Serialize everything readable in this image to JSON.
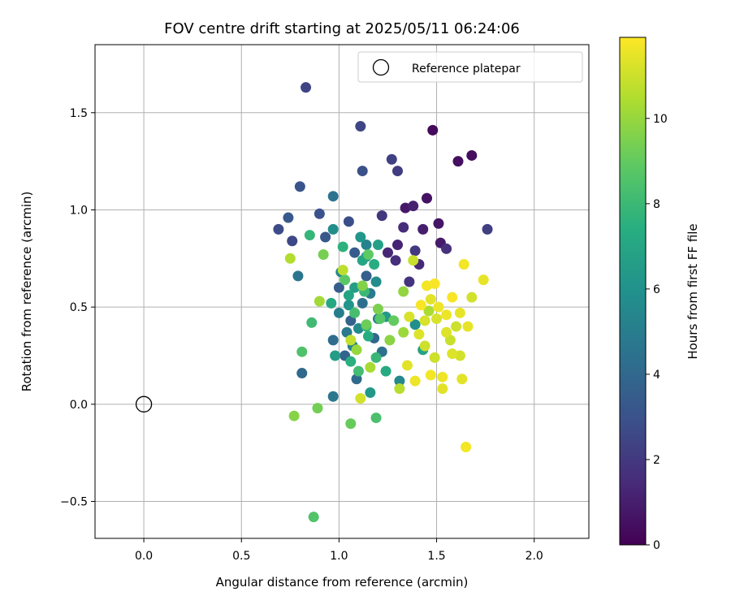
{
  "chart_data": {
    "type": "scatter",
    "title": "FOV centre drift starting at 2025/05/11 06:24:06",
    "xlabel": "Angular distance from reference (arcmin)",
    "ylabel": "Rotation from reference (arcmin)",
    "xlim": [
      -0.25,
      2.28
    ],
    "ylim": [
      -0.69,
      1.85
    ],
    "x_ticks": [
      0.0,
      0.5,
      1.0,
      1.5,
      2.0
    ],
    "x_tick_labels": [
      "0.0",
      "0.5",
      "1.0",
      "1.5",
      "2.0"
    ],
    "y_ticks": [
      -0.5,
      0.0,
      0.5,
      1.0,
      1.5
    ],
    "y_tick_labels": [
      "−0.5",
      "0.0",
      "0.5",
      "1.0",
      "1.5"
    ],
    "grid": true,
    "colormap": "viridis",
    "colorbar": {
      "label": "Hours from first FF file",
      "range": [
        0,
        11.9
      ],
      "ticks": [
        0,
        2,
        4,
        6,
        8,
        10
      ],
      "tick_labels": [
        "0",
        "2",
        "4",
        "6",
        "8",
        "10"
      ]
    },
    "legend": {
      "placement": "top-right",
      "entries": [
        "Reference platepar"
      ]
    },
    "reference_point": {
      "x": 0.0,
      "y": 0.0
    },
    "points": [
      {
        "x": 1.48,
        "y": 1.41,
        "c": 0.3
      },
      {
        "x": 1.68,
        "y": 1.28,
        "c": 0.4
      },
      {
        "x": 1.61,
        "y": 1.25,
        "c": 0.5
      },
      {
        "x": 1.45,
        "y": 1.06,
        "c": 0.6
      },
      {
        "x": 1.51,
        "y": 0.93,
        "c": 0.7
      },
      {
        "x": 1.34,
        "y": 1.01,
        "c": 0.8
      },
      {
        "x": 1.52,
        "y": 0.83,
        "c": 0.9
      },
      {
        "x": 1.43,
        "y": 0.9,
        "c": 1.0
      },
      {
        "x": 1.38,
        "y": 1.02,
        "c": 1.1
      },
      {
        "x": 1.3,
        "y": 0.82,
        "c": 1.2
      },
      {
        "x": 1.25,
        "y": 0.78,
        "c": 1.3
      },
      {
        "x": 1.41,
        "y": 0.72,
        "c": 1.4
      },
      {
        "x": 1.33,
        "y": 0.91,
        "c": 1.5
      },
      {
        "x": 1.29,
        "y": 0.74,
        "c": 1.6
      },
      {
        "x": 1.55,
        "y": 0.8,
        "c": 1.7
      },
      {
        "x": 1.36,
        "y": 0.63,
        "c": 1.8
      },
      {
        "x": 1.22,
        "y": 0.97,
        "c": 1.9
      },
      {
        "x": 1.39,
        "y": 0.79,
        "c": 2.0
      },
      {
        "x": 1.3,
        "y": 1.2,
        "c": 2.1
      },
      {
        "x": 1.76,
        "y": 0.9,
        "c": 2.2
      },
      {
        "x": 1.27,
        "y": 1.26,
        "c": 2.3
      },
      {
        "x": 0.83,
        "y": 1.63,
        "c": 2.4
      },
      {
        "x": 1.11,
        "y": 1.43,
        "c": 2.5
      },
      {
        "x": 0.76,
        "y": 0.84,
        "c": 2.6
      },
      {
        "x": 0.69,
        "y": 0.9,
        "c": 2.7
      },
      {
        "x": 1.05,
        "y": 0.94,
        "c": 2.8
      },
      {
        "x": 1.12,
        "y": 1.2,
        "c": 2.9
      },
      {
        "x": 0.9,
        "y": 0.98,
        "c": 3.0
      },
      {
        "x": 0.8,
        "y": 1.12,
        "c": 3.1
      },
      {
        "x": 0.93,
        "y": 0.86,
        "c": 3.2
      },
      {
        "x": 0.74,
        "y": 0.96,
        "c": 3.3
      },
      {
        "x": 1.08,
        "y": 0.78,
        "c": 3.4
      },
      {
        "x": 1.0,
        "y": 0.6,
        "c": 3.5
      },
      {
        "x": 1.14,
        "y": 0.66,
        "c": 3.6
      },
      {
        "x": 1.06,
        "y": 0.43,
        "c": 3.7
      },
      {
        "x": 1.03,
        "y": 0.25,
        "c": 3.8
      },
      {
        "x": 1.18,
        "y": 0.34,
        "c": 3.9
      },
      {
        "x": 0.81,
        "y": 0.16,
        "c": 4.0
      },
      {
        "x": 1.09,
        "y": 0.13,
        "c": 4.1
      },
      {
        "x": 0.97,
        "y": 0.33,
        "c": 4.2
      },
      {
        "x": 1.12,
        "y": 0.52,
        "c": 4.3
      },
      {
        "x": 1.22,
        "y": 0.27,
        "c": 4.4
      },
      {
        "x": 0.97,
        "y": 1.07,
        "c": 4.5
      },
      {
        "x": 0.79,
        "y": 0.66,
        "c": 4.6
      },
      {
        "x": 0.97,
        "y": 0.04,
        "c": 4.7
      },
      {
        "x": 1.04,
        "y": 0.37,
        "c": 4.8
      },
      {
        "x": 1.16,
        "y": 0.57,
        "c": 4.9
      },
      {
        "x": 1.0,
        "y": 0.47,
        "c": 5.0
      },
      {
        "x": 1.2,
        "y": 0.44,
        "c": 5.1
      },
      {
        "x": 1.07,
        "y": 0.3,
        "c": 5.2
      },
      {
        "x": 1.14,
        "y": 0.82,
        "c": 5.3
      },
      {
        "x": 1.01,
        "y": 0.68,
        "c": 5.4
      },
      {
        "x": 1.31,
        "y": 0.12,
        "c": 5.5
      },
      {
        "x": 1.1,
        "y": 0.39,
        "c": 5.6
      },
      {
        "x": 1.19,
        "y": 0.63,
        "c": 5.7
      },
      {
        "x": 0.97,
        "y": 0.9,
        "c": 5.8
      },
      {
        "x": 1.39,
        "y": 0.41,
        "c": 5.9
      },
      {
        "x": 1.14,
        "y": 0.76,
        "c": 6.0
      },
      {
        "x": 1.05,
        "y": 0.51,
        "c": 6.1
      },
      {
        "x": 1.11,
        "y": 0.86,
        "c": 6.2
      },
      {
        "x": 1.16,
        "y": 0.06,
        "c": 6.3
      },
      {
        "x": 1.24,
        "y": 0.45,
        "c": 6.4
      },
      {
        "x": 0.98,
        "y": 0.25,
        "c": 6.5
      },
      {
        "x": 1.08,
        "y": 0.6,
        "c": 6.6
      },
      {
        "x": 1.2,
        "y": 0.82,
        "c": 6.7
      },
      {
        "x": 1.43,
        "y": 0.28,
        "c": 6.8
      },
      {
        "x": 1.05,
        "y": 0.56,
        "c": 6.9
      },
      {
        "x": 1.12,
        "y": 0.74,
        "c": 7.0
      },
      {
        "x": 0.96,
        "y": 0.52,
        "c": 7.1
      },
      {
        "x": 1.24,
        "y": 0.17,
        "c": 7.2
      },
      {
        "x": 1.15,
        "y": 0.35,
        "c": 7.3
      },
      {
        "x": 1.18,
        "y": 0.72,
        "c": 7.4
      },
      {
        "x": 1.06,
        "y": 0.22,
        "c": 7.5
      },
      {
        "x": 1.02,
        "y": 0.81,
        "c": 7.6
      },
      {
        "x": 1.14,
        "y": 0.4,
        "c": 7.7
      },
      {
        "x": 0.85,
        "y": 0.87,
        "c": 7.8
      },
      {
        "x": 1.19,
        "y": 0.24,
        "c": 7.9
      },
      {
        "x": 1.13,
        "y": 0.58,
        "c": 8.0
      },
      {
        "x": 0.86,
        "y": 0.42,
        "c": 8.1
      },
      {
        "x": 1.1,
        "y": 0.17,
        "c": 8.2
      },
      {
        "x": 1.08,
        "y": 0.47,
        "c": 8.3
      },
      {
        "x": 1.19,
        "y": -0.07,
        "c": 8.4
      },
      {
        "x": 0.81,
        "y": 0.27,
        "c": 8.5
      },
      {
        "x": 0.87,
        "y": -0.58,
        "c": 8.6
      },
      {
        "x": 1.21,
        "y": 0.44,
        "c": 8.7
      },
      {
        "x": 1.03,
        "y": 0.64,
        "c": 8.8
      },
      {
        "x": 1.15,
        "y": 0.77,
        "c": 8.9
      },
      {
        "x": 1.28,
        "y": 0.43,
        "c": 9.0
      },
      {
        "x": 1.06,
        "y": -0.1,
        "c": 9.1
      },
      {
        "x": 1.14,
        "y": 0.41,
        "c": 9.2
      },
      {
        "x": 0.89,
        "y": -0.02,
        "c": 9.3
      },
      {
        "x": 0.92,
        "y": 0.77,
        "c": 9.4
      },
      {
        "x": 1.2,
        "y": 0.49,
        "c": 9.5
      },
      {
        "x": 1.12,
        "y": 0.61,
        "c": 9.6
      },
      {
        "x": 0.77,
        "y": -0.06,
        "c": 9.7
      },
      {
        "x": 1.26,
        "y": 0.33,
        "c": 9.8
      },
      {
        "x": 1.33,
        "y": 0.58,
        "c": 9.9
      },
      {
        "x": 1.09,
        "y": 0.28,
        "c": 10.0
      },
      {
        "x": 1.33,
        "y": 0.37,
        "c": 10.1
      },
      {
        "x": 0.9,
        "y": 0.53,
        "c": 10.2
      },
      {
        "x": 1.16,
        "y": 0.19,
        "c": 10.3
      },
      {
        "x": 1.46,
        "y": 0.48,
        "c": 10.4
      },
      {
        "x": 0.75,
        "y": 0.75,
        "c": 10.5
      },
      {
        "x": 1.31,
        "y": 0.08,
        "c": 10.6
      },
      {
        "x": 1.02,
        "y": 0.69,
        "c": 10.7
      },
      {
        "x": 1.06,
        "y": 0.33,
        "c": 10.8
      },
      {
        "x": 1.38,
        "y": 0.74,
        "c": 10.9
      },
      {
        "x": 1.44,
        "y": 0.3,
        "c": 11.0
      },
      {
        "x": 1.11,
        "y": 0.03,
        "c": 11.1
      },
      {
        "x": 1.5,
        "y": 0.44,
        "c": 11.2
      },
      {
        "x": 1.55,
        "y": 0.37,
        "c": 11.3
      },
      {
        "x": 1.47,
        "y": 0.54,
        "c": 11.4
      },
      {
        "x": 1.62,
        "y": 0.47,
        "c": 11.5
      },
      {
        "x": 1.53,
        "y": 0.14,
        "c": 11.6
      },
      {
        "x": 1.65,
        "y": -0.22,
        "c": 11.7
      },
      {
        "x": 1.42,
        "y": 0.51,
        "c": 11.8
      },
      {
        "x": 1.68,
        "y": 0.55,
        "c": 11.1
      },
      {
        "x": 1.74,
        "y": 0.64,
        "c": 11.5
      },
      {
        "x": 1.64,
        "y": 0.72,
        "c": 11.7
      },
      {
        "x": 1.58,
        "y": 0.26,
        "c": 11.3
      },
      {
        "x": 1.39,
        "y": 0.12,
        "c": 11.6
      },
      {
        "x": 1.6,
        "y": 0.4,
        "c": 11.0
      },
      {
        "x": 1.35,
        "y": 0.2,
        "c": 11.4
      },
      {
        "x": 1.49,
        "y": 0.62,
        "c": 11.8
      },
      {
        "x": 1.57,
        "y": 0.33,
        "c": 10.9
      },
      {
        "x": 1.44,
        "y": 0.43,
        "c": 11.2
      },
      {
        "x": 1.51,
        "y": 0.5,
        "c": 11.6
      },
      {
        "x": 1.66,
        "y": 0.4,
        "c": 11.5
      },
      {
        "x": 1.47,
        "y": 0.15,
        "c": 11.7
      },
      {
        "x": 1.53,
        "y": 0.08,
        "c": 11.4
      },
      {
        "x": 1.41,
        "y": 0.36,
        "c": 11.3
      },
      {
        "x": 1.62,
        "y": 0.25,
        "c": 11.1
      },
      {
        "x": 1.58,
        "y": 0.55,
        "c": 11.8
      },
      {
        "x": 1.36,
        "y": 0.45,
        "c": 11.2
      },
      {
        "x": 1.55,
        "y": 0.46,
        "c": 11.6
      },
      {
        "x": 1.49,
        "y": 0.24,
        "c": 11.0
      },
      {
        "x": 1.45,
        "y": 0.61,
        "c": 11.7
      },
      {
        "x": 1.63,
        "y": 0.13,
        "c": 11.4
      }
    ]
  }
}
